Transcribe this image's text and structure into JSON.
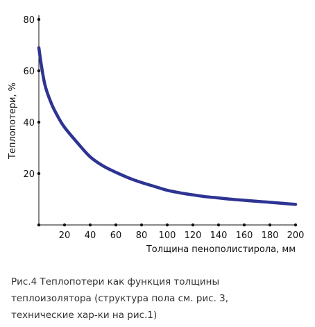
{
  "chart_data": {
    "type": "line",
    "xlabel": "Толщина пенополистирола, мм",
    "ylabel": "Теплопотери, %",
    "xlim": [
      0,
      200
    ],
    "ylim": [
      0,
      80
    ],
    "x_ticks": [
      20,
      40,
      60,
      80,
      100,
      120,
      140,
      160,
      180,
      200
    ],
    "y_ticks": [
      20,
      40,
      60,
      80
    ],
    "grid": false,
    "line_color": "#2e3492",
    "series": [
      {
        "x": [
          0,
          2,
          5,
          10,
          15,
          20,
          30,
          40,
          50,
          60,
          70,
          80,
          90,
          100,
          110,
          120,
          130,
          140,
          150,
          160,
          170,
          180,
          190,
          200
        ],
        "y": [
          69,
          62,
          54,
          47,
          42,
          38,
          32,
          26.5,
          23,
          20.5,
          18.3,
          16.5,
          15,
          13.5,
          12.5,
          11.7,
          11,
          10.5,
          10,
          9.6,
          9.2,
          8.8,
          8.4,
          8
        ]
      }
    ]
  },
  "caption": {
    "line1": "Рис.4  Теплопотери как функция толщины",
    "line2": "теплоизолятора (структура пола см. рис. 3,",
    "line3": "технические хар-ки на рис.1)"
  }
}
